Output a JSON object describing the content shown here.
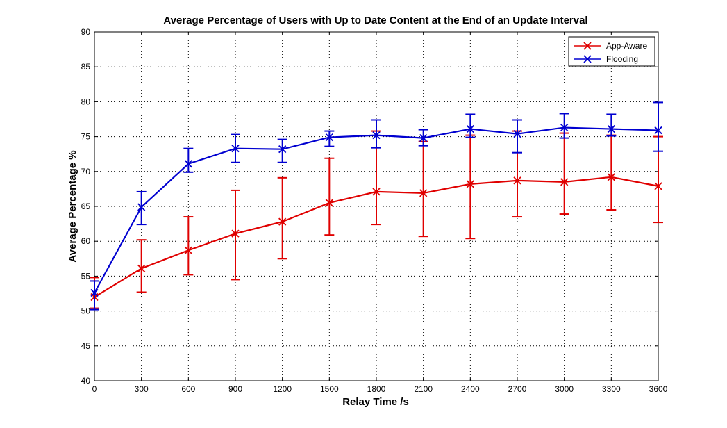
{
  "chart_data": {
    "type": "line",
    "title": "Average Percentage of Users with Up to Date Content at the End of an Update Interval",
    "xlabel": "Relay Time /s",
    "ylabel": "Average Percentage %",
    "x": [
      0,
      300,
      600,
      900,
      1200,
      1500,
      1800,
      2100,
      2400,
      2700,
      3000,
      3300,
      3600
    ],
    "xlim": [
      0,
      3600
    ],
    "ylim": [
      40,
      90
    ],
    "xticks": [
      "0",
      "300",
      "600",
      "900",
      "1200",
      "1500",
      "1800",
      "2100",
      "2400",
      "2700",
      "3000",
      "3300",
      "3600"
    ],
    "yticks": [
      "40",
      "45",
      "50",
      "55",
      "60",
      "65",
      "70",
      "75",
      "80",
      "85",
      "90"
    ],
    "grid": true,
    "legend_position": "top-right",
    "series": [
      {
        "name": "App-Aware",
        "color": "#e00000",
        "marker": "x",
        "values": [
          52.0,
          56.1,
          58.7,
          61.1,
          62.8,
          65.5,
          67.1,
          66.9,
          68.2,
          68.7,
          68.5,
          69.2,
          67.9
        ],
        "err_low": [
          50.4,
          52.7,
          55.2,
          54.5,
          57.5,
          60.9,
          62.4,
          60.7,
          60.4,
          63.5,
          63.9,
          64.5,
          62.7
        ],
        "err_high": [
          54.8,
          60.2,
          63.5,
          67.3,
          69.1,
          71.9,
          75.8,
          74.3,
          75.2,
          75.8,
          75.5,
          75.2,
          75.0
        ]
      },
      {
        "name": "Flooding",
        "color": "#0000d0",
        "marker": "x",
        "values": [
          52.6,
          64.9,
          71.1,
          73.3,
          73.2,
          74.9,
          75.2,
          74.8,
          76.1,
          75.4,
          76.3,
          76.1,
          75.9
        ],
        "err_low": [
          50.2,
          62.4,
          69.9,
          71.3,
          71.3,
          73.6,
          73.4,
          73.7,
          74.9,
          72.7,
          74.8,
          75.1,
          72.9
        ],
        "err_high": [
          54.3,
          67.1,
          73.3,
          75.3,
          74.6,
          75.8,
          77.4,
          76.0,
          78.2,
          77.4,
          78.3,
          78.2,
          79.9
        ]
      }
    ]
  }
}
